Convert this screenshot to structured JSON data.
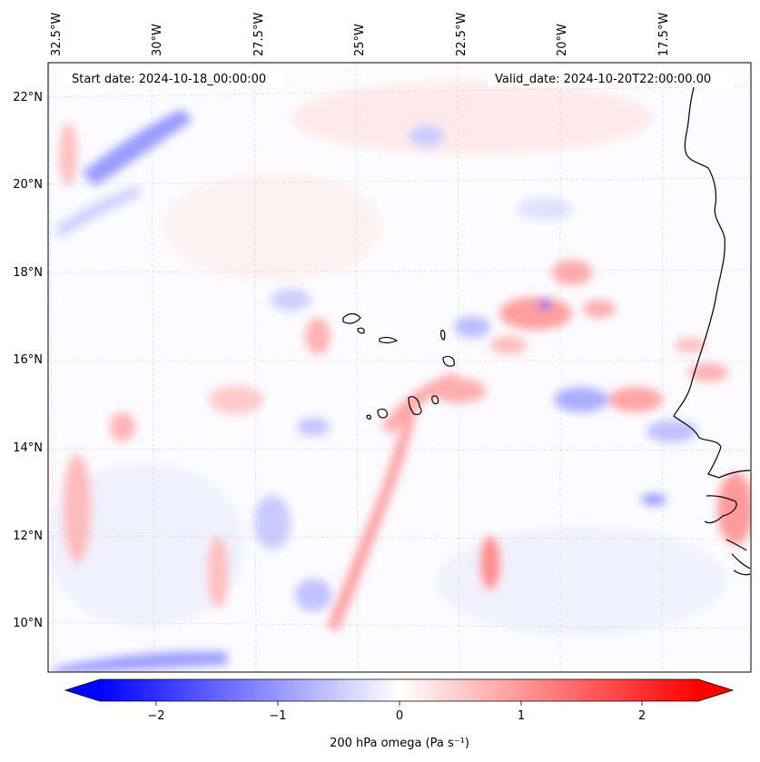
{
  "map": {
    "start_label": "Start date: 2024-10-18_00:00:00",
    "valid_label": "Valid_date: 2024-10-20T22:00:00.00",
    "lon_labels": [
      "32.5°W",
      "30°W",
      "27.5°W",
      "25°W",
      "22.5°W",
      "20°W",
      "17.5°W"
    ],
    "lat_labels": [
      "22°N",
      "20°N",
      "18°N",
      "16°N",
      "14°N",
      "12°N",
      "10°N"
    ],
    "lon_extent": [
      -33.0,
      -15.8
    ],
    "lat_extent": [
      8.9,
      22.8
    ],
    "gridlines": true
  },
  "colorbar": {
    "label": "200 hPa omega (Pa s⁻¹)",
    "ticks": [
      "−2",
      "−1",
      "0",
      "1",
      "2"
    ],
    "tick_values": [
      -2,
      -1,
      0,
      1,
      2
    ],
    "range": [
      -2.6,
      2.6
    ],
    "extend": "both",
    "colormap": "bwr",
    "colors": {
      "low": "#0000ff",
      "mid": "#ffffff",
      "high": "#ff0000"
    }
  },
  "features": {
    "islands": "Cape Verde",
    "coastline": "West Africa"
  }
}
